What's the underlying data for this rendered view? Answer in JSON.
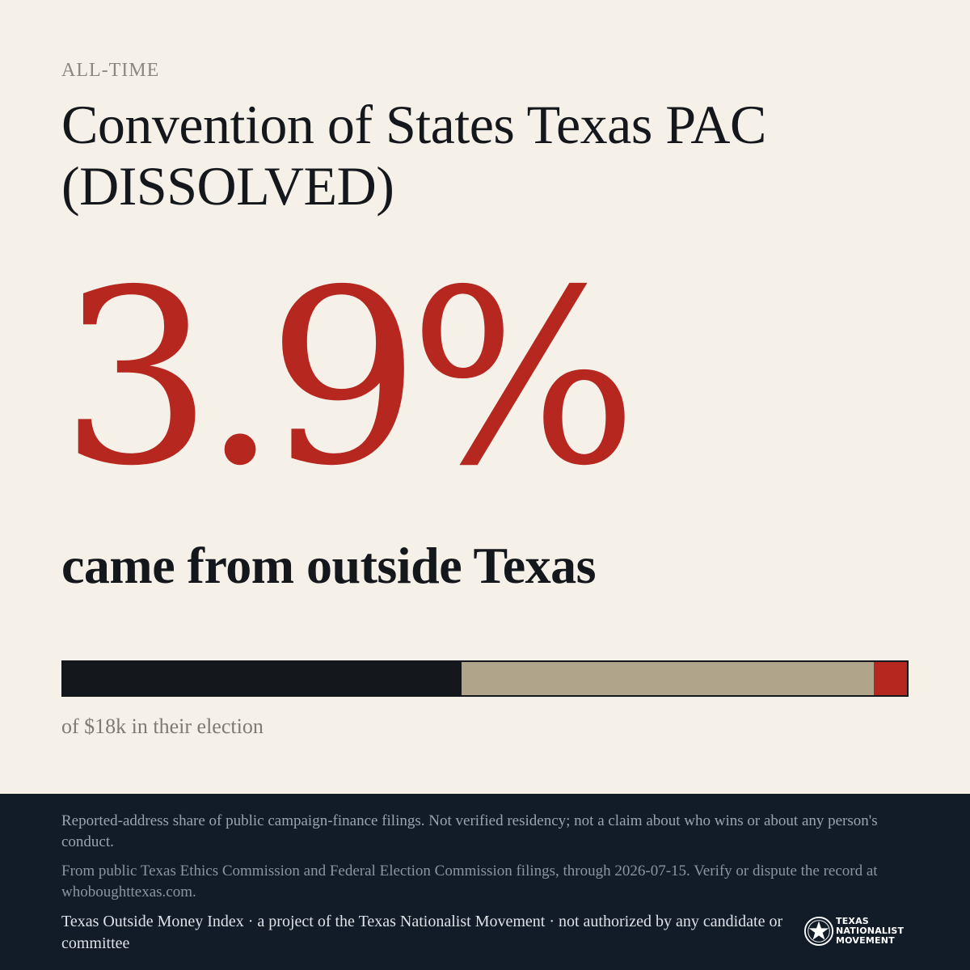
{
  "header": {
    "eyebrow": "ALL-TIME",
    "title": "Convention of States Texas PAC (DISSOLVED)"
  },
  "headline": {
    "value": "3.9%",
    "subtitle": "came from outside Texas"
  },
  "bar": {
    "segments": [
      {
        "share": 0.472,
        "color": "#14171c"
      },
      {
        "share": 0.489,
        "color": "#b0a58b"
      },
      {
        "share": 0.039,
        "color": "#b5271f"
      }
    ]
  },
  "caption": "of $18k in their election",
  "footer": {
    "disclaimer": "Reported-address share of public campaign-finance filings. Not verified residency; not a claim about who wins or about any person's conduct.",
    "source": "From public Texas Ethics Commission and Federal Election Commission filings, through 2026-07-15. Verify or dispute the record at whoboughttexas.com.",
    "credit": "Texas Outside Money Index · a project of the Texas Nationalist Movement · not authorized by any candidate or committee",
    "logo": {
      "icon": "star-seal-icon",
      "line1": "TEXAS",
      "line2": "NATIONALIST",
      "line3": "MOVEMENT"
    }
  }
}
